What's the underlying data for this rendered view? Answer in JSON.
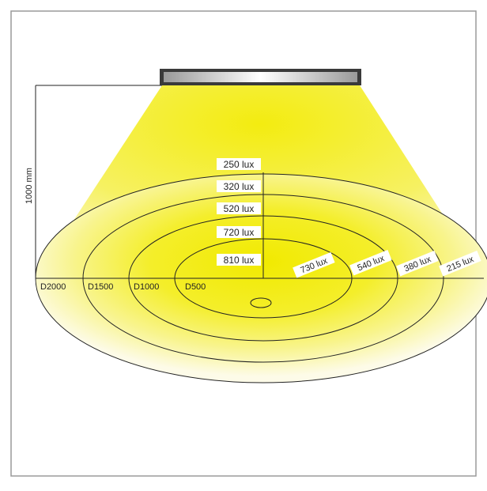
{
  "dimension": {
    "height_label": "1000 mm"
  },
  "vertical_labels": [
    "250 lux",
    "320 lux",
    "520 lux",
    "720 lux",
    "810 lux"
  ],
  "diagonal_labels": [
    "730 lux",
    "540 lux",
    "380 lux",
    "215 lux"
  ],
  "diameter_labels": [
    "D2000",
    "D1500",
    "D1000",
    "D500"
  ],
  "colors": {
    "frame": "#9a9a9a",
    "light_core": "#f1ea00",
    "light_edge": "#fdfbe8",
    "lines": "#222222",
    "fixture_frame": "#3a3a3a"
  }
}
